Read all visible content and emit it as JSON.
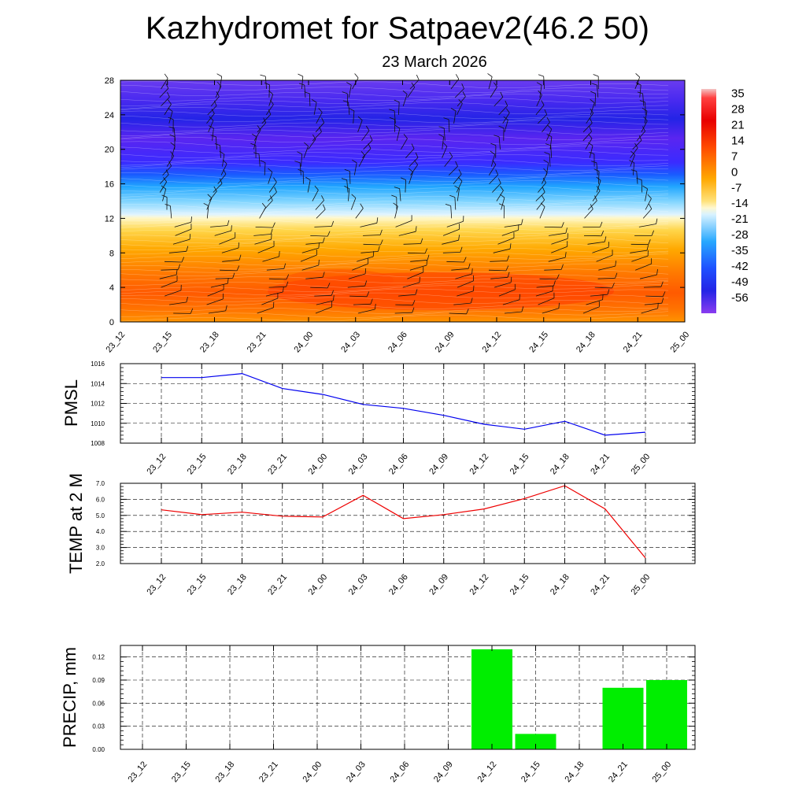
{
  "header": {
    "title": "Kazhydromet for Satpaev2(46.2 50)",
    "subtitle": "23 March 2026"
  },
  "time_labels": [
    "23_12",
    "23_15",
    "23_18",
    "23_21",
    "24_00",
    "24_03",
    "24_06",
    "24_09",
    "24_12",
    "24_15",
    "24_18",
    "24_21",
    "25_00"
  ],
  "colors": {
    "pmsl_line": "#0000ee",
    "temp_line": "#ee0000",
    "precip_bar": "#00ee00",
    "grid": "#000000"
  },
  "chart_data": [
    {
      "type": "heatmap",
      "title": "Kazhydromet for Satpaev2(46.2 50)",
      "subtitle": "23 March 2026",
      "x": [
        "23_12",
        "23_15",
        "23_18",
        "23_21",
        "24_00",
        "24_03",
        "24_06",
        "24_09",
        "24_12",
        "24_15",
        "24_18",
        "24_21",
        "25_00"
      ],
      "ylim": [
        0,
        28
      ],
      "yticks": [
        "0",
        "4",
        "8",
        "12",
        "16",
        "20",
        "24",
        "28"
      ],
      "colorbar": {
        "ticks": [
          "35",
          "28",
          "21",
          "14",
          "7",
          "0",
          "-7",
          "-14",
          "-21",
          "-28",
          "-35",
          "-42",
          "-49",
          "-56"
        ],
        "range": [
          -62,
          38
        ]
      },
      "description_note": "temperature field with wind barbs"
    },
    {
      "type": "line",
      "ylabel": "PMSL",
      "x": [
        "23_12",
        "23_15",
        "23_18",
        "23_21",
        "24_00",
        "24_03",
        "24_06",
        "24_09",
        "24_12",
        "24_15",
        "24_18",
        "24_21",
        "25_00"
      ],
      "values": [
        1014.6,
        1014.6,
        1015.0,
        1013.5,
        1012.9,
        1011.9,
        1011.5,
        1010.8,
        1009.9,
        1009.4,
        1010.2,
        1008.8,
        1009.1
      ],
      "ylim": [
        1008,
        1016
      ],
      "yticks": [
        "1008",
        "1010",
        "1012",
        "1014",
        "1016"
      ]
    },
    {
      "type": "line",
      "ylabel": "TEMP at 2 M",
      "x": [
        "23_12",
        "23_15",
        "23_18",
        "23_21",
        "24_00",
        "24_03",
        "24_06",
        "24_09",
        "24_12",
        "24_15",
        "24_18",
        "24_21",
        "25_00"
      ],
      "values": [
        5.35,
        5.05,
        5.2,
        4.95,
        4.9,
        6.25,
        4.8,
        5.05,
        5.4,
        6.05,
        6.85,
        5.4,
        2.35
      ],
      "ylim": [
        2.0,
        7.0
      ],
      "yticks": [
        "2.0",
        "3.0",
        "4.0",
        "5.0",
        "6.0",
        "7.0"
      ]
    },
    {
      "type": "bar",
      "ylabel": "PRECIP, mm",
      "categories": [
        "23_12",
        "23_15",
        "23_18",
        "23_21",
        "24_00",
        "24_03",
        "24_06",
        "24_09",
        "24_12",
        "24_15",
        "24_18",
        "24_21",
        "25_00"
      ],
      "values": [
        0,
        0,
        0,
        0,
        0,
        0,
        0,
        0,
        0.13,
        0.02,
        0,
        0.08,
        0.09
      ],
      "ylim": [
        0,
        0.135
      ],
      "yticks": [
        "0.00",
        "0.03",
        "0.06",
        "0.09",
        "0.12"
      ]
    }
  ]
}
